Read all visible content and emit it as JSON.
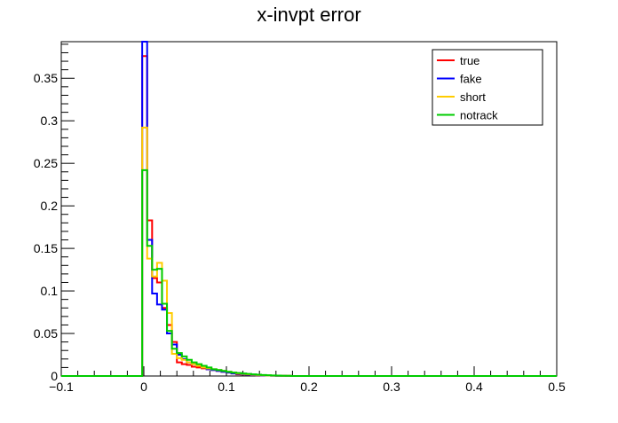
{
  "chart_data": {
    "type": "line",
    "title": "x-invpt error",
    "xlabel": "",
    "ylabel": "",
    "xlim": [
      -0.1,
      0.5
    ],
    "ylim": [
      0,
      0.393
    ],
    "x_ticks": [
      -0.1,
      0,
      0.1,
      0.2,
      0.3,
      0.4,
      0.5
    ],
    "x_tick_labels": [
      "−0.1",
      "0",
      "0.1",
      "0.2",
      "0.3",
      "0.4",
      "0.5"
    ],
    "y_ticks": [
      0,
      0.05,
      0.1,
      0.15,
      0.2,
      0.25,
      0.3,
      0.35
    ],
    "y_tick_labels": [
      "0",
      "0.05",
      "0.1",
      "0.15",
      "0.2",
      "0.25",
      "0.3",
      "0.35"
    ],
    "legend_position": "top-right",
    "bin_edges": [
      -0.002,
      0.004,
      0.01,
      0.016,
      0.022,
      0.028,
      0.034,
      0.04,
      0.046,
      0.052,
      0.058,
      0.064,
      0.07,
      0.076,
      0.082,
      0.088,
      0.094,
      0.1,
      0.106,
      0.112,
      0.118,
      0.124,
      0.13,
      0.136,
      0.142,
      0.148,
      0.154,
      0.16,
      0.166,
      0.172,
      0.178
    ],
    "series": [
      {
        "name": "true",
        "color": "#ff0000",
        "values": [
          0.376,
          0.183,
          0.115,
          0.11,
          0.08,
          0.06,
          0.04,
          0.016,
          0.014,
          0.013,
          0.011,
          0.01,
          0.009,
          0.008,
          0.007,
          0.006,
          0.005,
          0.004,
          0.003,
          0.002,
          0.0018,
          0.0014,
          0.0011,
          0.0008,
          0.0006,
          0.0005,
          0.0004,
          0.0003,
          0.0002,
          0.0001
        ]
      },
      {
        "name": "fake",
        "color": "#0000ff",
        "values": [
          0.393,
          0.16,
          0.097,
          0.084,
          0.078,
          0.05,
          0.037,
          0.025,
          0.02,
          0.016,
          0.014,
          0.012,
          0.01,
          0.008,
          0.007,
          0.006,
          0.005,
          0.004,
          0.003,
          0.0025,
          0.002,
          0.0015,
          0.0012,
          0.0009,
          0.0007,
          0.0005,
          0.0004,
          0.0003,
          0.0002,
          0.0001
        ]
      },
      {
        "name": "short",
        "color": "#ffcc00",
        "values": [
          0.292,
          0.138,
          0.117,
          0.133,
          0.112,
          0.074,
          0.026,
          0.021,
          0.019,
          0.016,
          0.014,
          0.012,
          0.01,
          0.009,
          0.008,
          0.007,
          0.006,
          0.005,
          0.004,
          0.003,
          0.0025,
          0.002,
          0.0016,
          0.0012,
          0.0009,
          0.0007,
          0.0005,
          0.0004,
          0.0003,
          0.0002
        ]
      },
      {
        "name": "notrack",
        "color": "#00cc00",
        "values": [
          0.242,
          0.153,
          0.125,
          0.126,
          0.085,
          0.053,
          0.032,
          0.027,
          0.023,
          0.019,
          0.016,
          0.014,
          0.012,
          0.01,
          0.008,
          0.007,
          0.006,
          0.005,
          0.004,
          0.0035,
          0.003,
          0.0025,
          0.002,
          0.0015,
          0.0012,
          0.0009,
          0.0007,
          0.0005,
          0.0003,
          0.0002
        ]
      }
    ]
  }
}
